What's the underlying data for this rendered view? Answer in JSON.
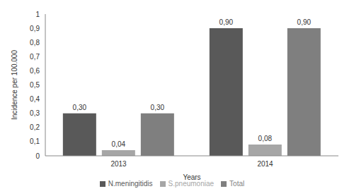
{
  "chart_data": {
    "type": "bar",
    "x_label": "Years",
    "y_label": "Incidence per 100.000",
    "categories": [
      "2013",
      "2014"
    ],
    "series": [
      {
        "name": "N.meningitidis",
        "color": "#595959",
        "values": [
          0.3,
          0.9
        ],
        "value_labels": [
          "0,30",
          "0,90"
        ]
      },
      {
        "name": "S.pneumoniae",
        "color": "#a6a6a6",
        "values": [
          0.04,
          0.08
        ],
        "value_labels": [
          "0,04",
          "0,08"
        ]
      },
      {
        "name": "Total",
        "color": "#7f7f7f",
        "values": [
          0.3,
          0.9
        ],
        "value_labels": [
          "0,30",
          "0,90"
        ]
      }
    ],
    "ylim": [
      0,
      1
    ],
    "yticks": [
      0,
      {
        "value": 0.1,
        "label": "0,1"
      },
      {
        "value": 0.2,
        "label": "0,2"
      },
      {
        "value": 0.3,
        "label": "0,3"
      },
      {
        "value": 0.4,
        "label": "0,4"
      },
      {
        "value": 0.5,
        "label": "0,5"
      },
      {
        "value": 0.6,
        "label": "0,6"
      },
      {
        "value": 0.7,
        "label": "0,7"
      },
      {
        "value": 0.8,
        "label": "0,8"
      },
      {
        "value": 0.9,
        "label": "0,9"
      },
      1
    ],
    "grid": false,
    "legend": "bottom",
    "data_labels": true
  }
}
